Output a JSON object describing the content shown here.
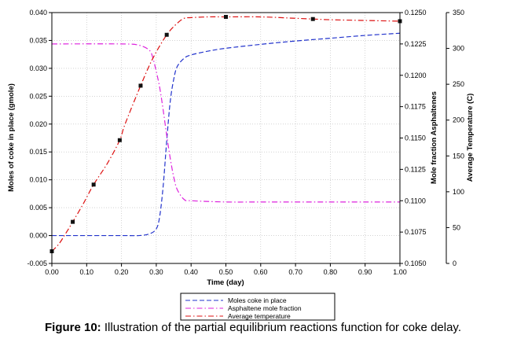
{
  "chart_data": {
    "type": "line",
    "title": "",
    "xlabel": "Time (day)",
    "ylabel": "Moles of coke in place (gmole)",
    "y2label": "Mole fraction Asphaltenes",
    "y3label": "Average Temperature (C)",
    "xlim": [
      0,
      1.0
    ],
    "ylim": [
      -0.005,
      0.04
    ],
    "y2lim": [
      0.105,
      0.125
    ],
    "y3lim": [
      0,
      350
    ],
    "grid": true,
    "xticks": [
      "0.00",
      "0.10",
      "0.20",
      "0.30",
      "0.40",
      "0.50",
      "0.60",
      "0.70",
      "0.80",
      "0.90",
      "1.00"
    ],
    "yticks": [
      "-0.005",
      "0.000",
      "0.005",
      "0.010",
      "0.015",
      "0.020",
      "0.025",
      "0.030",
      "0.035",
      "0.040"
    ],
    "y2ticks": [
      "0.1050",
      "0.1075",
      "0.1100",
      "0.1125",
      "0.1150",
      "0.1175",
      "0.1200",
      "0.1225",
      "0.1250"
    ],
    "y3ticks": [
      "0",
      "50",
      "100",
      "150",
      "200",
      "250",
      "300",
      "350"
    ],
    "series": [
      {
        "name": "Moles coke in place",
        "axis": "left",
        "color": "#2233cc",
        "dash": "dashed",
        "x": [
          0,
          0.2,
          0.25,
          0.28,
          0.3,
          0.31,
          0.32,
          0.33,
          0.34,
          0.35,
          0.36,
          0.38,
          0.4,
          0.45,
          0.5,
          0.6,
          0.7,
          0.8,
          0.9,
          1.0
        ],
        "values": [
          0,
          0,
          0,
          0.0003,
          0.0012,
          0.0035,
          0.009,
          0.017,
          0.024,
          0.028,
          0.0303,
          0.0318,
          0.0324,
          0.0331,
          0.0336,
          0.0343,
          0.0349,
          0.0354,
          0.0359,
          0.0363
        ]
      },
      {
        "name": "Asphaltene mole fraction",
        "axis": "right1",
        "color": "#dd22dd",
        "dash": "dashdot",
        "x": [
          0,
          0.2,
          0.25,
          0.28,
          0.29,
          0.3,
          0.31,
          0.32,
          0.33,
          0.34,
          0.35,
          0.36,
          0.38,
          0.4,
          0.5,
          0.6,
          0.8,
          1.0
        ],
        "values": [
          0.1225,
          0.1225,
          0.1224,
          0.122,
          0.1214,
          0.1203,
          0.119,
          0.1172,
          0.1152,
          0.1134,
          0.1119,
          0.1109,
          0.1101,
          0.11,
          0.1099,
          0.1099,
          0.1099,
          0.1099
        ]
      },
      {
        "name": "Average temperature",
        "axis": "right2",
        "color": "#dd1111",
        "dash": "dashdot",
        "x": [
          0,
          0.02,
          0.04,
          0.06,
          0.09,
          0.12,
          0.16,
          0.195,
          0.21,
          0.255,
          0.29,
          0.33,
          0.36,
          0.38,
          0.4,
          0.45,
          0.5,
          0.6,
          0.7,
          0.75,
          0.8,
          0.9,
          1.0
        ],
        "values": [
          17,
          27,
          42,
          58,
          83,
          110,
          140,
          172,
          194,
          248,
          286,
          319,
          335,
          342,
          343,
          344,
          344,
          344,
          342,
          341,
          340,
          339,
          338
        ]
      }
    ],
    "markers": {
      "series": "Average temperature",
      "x": [
        0.0,
        0.06,
        0.12,
        0.195,
        0.255,
        0.33,
        0.5,
        0.75,
        1.0
      ],
      "values": [
        17,
        58,
        110,
        172,
        248,
        319,
        344,
        341,
        338
      ]
    },
    "legend_position": "bottom-right"
  },
  "caption": {
    "label": "Figure 10:",
    "text": "Illustration of the partial equilibrium reactions function for coke delay."
  }
}
